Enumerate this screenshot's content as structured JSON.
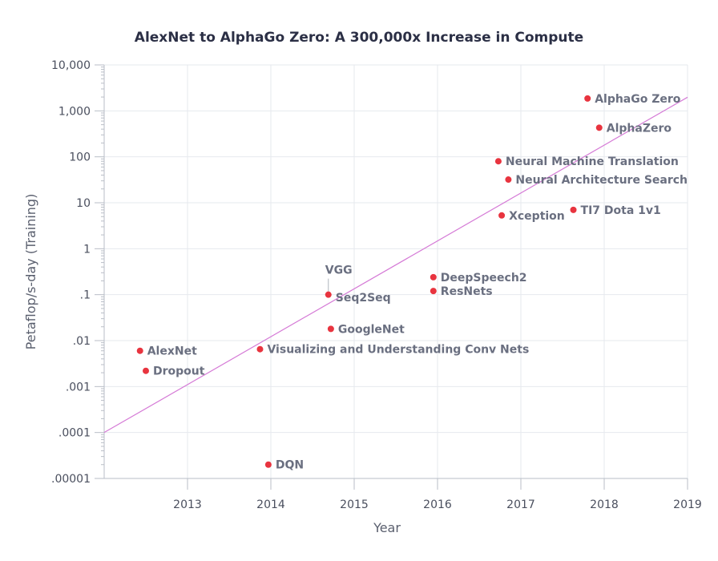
{
  "chart_data": {
    "type": "scatter",
    "title": "AlexNet to AlphaGo Zero: A 300,000x Increase in Compute",
    "xlabel": "Year",
    "ylabel": "Petaflop/s-day (Training)",
    "xlim": [
      2012.0,
      2019.0
    ],
    "ylim": [
      1e-05,
      10000
    ],
    "y_scale": "log",
    "x_ticks": [
      "2013",
      "2014",
      "2015",
      "2016",
      "2017",
      "2018",
      "2019"
    ],
    "y_ticks": [
      "10,000",
      "1,000",
      "100",
      "10",
      "1",
      ".1",
      ".01",
      ".001",
      ".0001",
      ".00001"
    ],
    "grid": true,
    "points": [
      {
        "label": "AlexNet",
        "x": 2012.43,
        "y": 0.006
      },
      {
        "label": "Dropout",
        "x": 2012.5,
        "y": 0.0022
      },
      {
        "label": "DQN",
        "x": 2013.97,
        "y": 2e-05
      },
      {
        "label": "Visualizing and Understanding Conv Nets",
        "x": 2013.87,
        "y": 0.0065
      },
      {
        "label": "GoogleNet",
        "x": 2014.72,
        "y": 0.018
      },
      {
        "label": "VGG",
        "x": 2014.69,
        "y": 0.1
      },
      {
        "label": "Seq2Seq",
        "x": 2014.69,
        "y": 0.095
      },
      {
        "label": "DeepSpeech2",
        "x": 2015.95,
        "y": 0.24
      },
      {
        "label": "ResNets",
        "x": 2015.95,
        "y": 0.12
      },
      {
        "label": "Xception",
        "x": 2016.77,
        "y": 5.3
      },
      {
        "label": "Neural Machine Translation",
        "x": 2016.73,
        "y": 80
      },
      {
        "label": "Neural Architecture Search",
        "x": 2016.85,
        "y": 32
      },
      {
        "label": "TI7 Dota 1v1",
        "x": 2017.63,
        "y": 7
      },
      {
        "label": "AlphaZero",
        "x": 2017.94,
        "y": 430
      },
      {
        "label": "AlphaGo Zero",
        "x": 2017.8,
        "y": 1860
      }
    ],
    "trend_line": {
      "x": [
        2012.0,
        2019.0
      ],
      "y": [
        0.0001,
        1980
      ]
    },
    "colors": {
      "point": "#e8343f",
      "trend": "#d57ad6"
    }
  }
}
